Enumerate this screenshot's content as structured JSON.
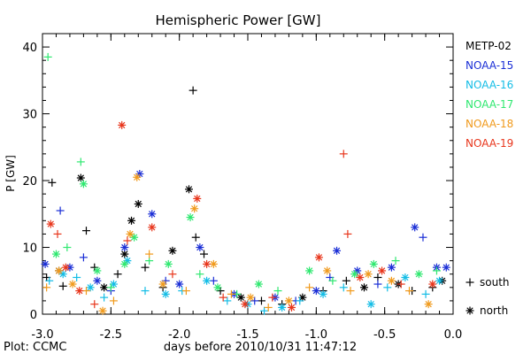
{
  "chart_data": {
    "type": "scatter",
    "title": "Hemispheric Power [GW]",
    "xlabel": "days before 2010/10/31 11:47:12",
    "ylabel": "P [GW]",
    "xlim": [
      -3.0,
      0.0
    ],
    "ylim": [
      0,
      42
    ],
    "xticks": [
      -3.0,
      -2.5,
      -2.0,
      -1.5,
      -1.0,
      -0.5,
      0.0
    ],
    "xtick_labels": [
      "-3.0",
      "-2.5",
      "-2.0",
      "-1.5",
      "-1.0",
      "-0.5",
      "0.0"
    ],
    "yticks": [
      0,
      10,
      20,
      30,
      40
    ],
    "ytick_labels": [
      "0",
      "10",
      "20",
      "30",
      "40"
    ],
    "grid": false,
    "legend_position": "right",
    "footer": "Plot: CCMC",
    "marker_legend": [
      {
        "symbol": "+",
        "label": "south"
      },
      {
        "symbol": "*",
        "label": "north"
      }
    ],
    "series": [
      {
        "name": "METP-02",
        "color": "#000000",
        "points": [
          {
            "x": -2.97,
            "y": 5.5,
            "m": "+"
          },
          {
            "x": -2.93,
            "y": 19.7,
            "m": "+"
          },
          {
            "x": -2.88,
            "y": 6.5,
            "m": "*"
          },
          {
            "x": -2.85,
            "y": 4.2,
            "m": "+"
          },
          {
            "x": -2.72,
            "y": 20.4,
            "m": "*"
          },
          {
            "x": -2.68,
            "y": 12.5,
            "m": "+"
          },
          {
            "x": -2.62,
            "y": 7.0,
            "m": "+"
          },
          {
            "x": -2.55,
            "y": 4.0,
            "m": "*"
          },
          {
            "x": -2.45,
            "y": 6.0,
            "m": "+"
          },
          {
            "x": -2.4,
            "y": 9.0,
            "m": "*"
          },
          {
            "x": -2.35,
            "y": 14.0,
            "m": "*"
          },
          {
            "x": -2.3,
            "y": 16.5,
            "m": "*"
          },
          {
            "x": -2.25,
            "y": 7.0,
            "m": "+"
          },
          {
            "x": -2.12,
            "y": 4.0,
            "m": "+"
          },
          {
            "x": -2.05,
            "y": 9.5,
            "m": "*"
          },
          {
            "x": -1.9,
            "y": 33.5,
            "m": "+"
          },
          {
            "x": -1.93,
            "y": 18.7,
            "m": "*"
          },
          {
            "x": -1.88,
            "y": 11.5,
            "m": "+"
          },
          {
            "x": -1.82,
            "y": 9.0,
            "m": "+"
          },
          {
            "x": -1.7,
            "y": 3.5,
            "m": "+"
          },
          {
            "x": -1.55,
            "y": 2.5,
            "m": "*"
          },
          {
            "x": -1.4,
            "y": 2.0,
            "m": "+"
          },
          {
            "x": -1.25,
            "y": 1.5,
            "m": "+"
          },
          {
            "x": -1.1,
            "y": 2.5,
            "m": "*"
          },
          {
            "x": -0.95,
            "y": 3.5,
            "m": "+"
          },
          {
            "x": -0.78,
            "y": 5.0,
            "m": "+"
          },
          {
            "x": -0.65,
            "y": 4.0,
            "m": "*"
          },
          {
            "x": -0.55,
            "y": 5.5,
            "m": "+"
          },
          {
            "x": -0.4,
            "y": 4.5,
            "m": "*"
          },
          {
            "x": -0.3,
            "y": 3.5,
            "m": "+"
          },
          {
            "x": -0.15,
            "y": 4.0,
            "m": "+"
          },
          {
            "x": -0.08,
            "y": 5.0,
            "m": "*"
          }
        ]
      },
      {
        "name": "NOAA-15",
        "color": "#1a2ed6",
        "points": [
          {
            "x": -2.98,
            "y": 7.5,
            "m": "*"
          },
          {
            "x": -2.87,
            "y": 15.5,
            "m": "+"
          },
          {
            "x": -2.8,
            "y": 7.0,
            "m": "*"
          },
          {
            "x": -2.7,
            "y": 8.5,
            "m": "+"
          },
          {
            "x": -2.6,
            "y": 5.0,
            "m": "*"
          },
          {
            "x": -2.5,
            "y": 3.5,
            "m": "+"
          },
          {
            "x": -2.4,
            "y": 10.0,
            "m": "*"
          },
          {
            "x": -2.29,
            "y": 21.0,
            "m": "*"
          },
          {
            "x": -2.2,
            "y": 15.0,
            "m": "*"
          },
          {
            "x": -2.1,
            "y": 5.0,
            "m": "+"
          },
          {
            "x": -2.0,
            "y": 4.5,
            "m": "*"
          },
          {
            "x": -1.85,
            "y": 10.0,
            "m": "*"
          },
          {
            "x": -1.75,
            "y": 5.0,
            "m": "+"
          },
          {
            "x": -1.6,
            "y": 3.0,
            "m": "*"
          },
          {
            "x": -1.45,
            "y": 2.0,
            "m": "+"
          },
          {
            "x": -1.3,
            "y": 2.5,
            "m": "*"
          },
          {
            "x": -1.15,
            "y": 2.0,
            "m": "+"
          },
          {
            "x": -1.0,
            "y": 3.5,
            "m": "*"
          },
          {
            "x": -0.9,
            "y": 5.5,
            "m": "+"
          },
          {
            "x": -0.85,
            "y": 9.5,
            "m": "*"
          },
          {
            "x": -0.7,
            "y": 6.5,
            "m": "*"
          },
          {
            "x": -0.55,
            "y": 4.5,
            "m": "+"
          },
          {
            "x": -0.45,
            "y": 7.0,
            "m": "*"
          },
          {
            "x": -0.28,
            "y": 13.0,
            "m": "*"
          },
          {
            "x": -0.22,
            "y": 11.5,
            "m": "+"
          },
          {
            "x": -0.12,
            "y": 7.0,
            "m": "*"
          },
          {
            "x": -0.05,
            "y": 7.0,
            "m": "*"
          }
        ]
      },
      {
        "name": "NOAA-16",
        "color": "#14bde6",
        "points": [
          {
            "x": -2.95,
            "y": 5.0,
            "m": "+"
          },
          {
            "x": -2.85,
            "y": 6.0,
            "m": "*"
          },
          {
            "x": -2.75,
            "y": 5.5,
            "m": "+"
          },
          {
            "x": -2.65,
            "y": 4.0,
            "m": "*"
          },
          {
            "x": -2.55,
            "y": 2.5,
            "m": "+"
          },
          {
            "x": -2.48,
            "y": 4.5,
            "m": "*"
          },
          {
            "x": -2.38,
            "y": 8.0,
            "m": "*"
          },
          {
            "x": -2.25,
            "y": 3.5,
            "m": "+"
          },
          {
            "x": -2.1,
            "y": 3.0,
            "m": "*"
          },
          {
            "x": -1.98,
            "y": 3.5,
            "m": "+"
          },
          {
            "x": -1.8,
            "y": 5.0,
            "m": "*"
          },
          {
            "x": -1.65,
            "y": 2.0,
            "m": "+"
          },
          {
            "x": -1.5,
            "y": 1.5,
            "m": "*"
          },
          {
            "x": -1.38,
            "y": 0.5,
            "m": "+"
          },
          {
            "x": -1.25,
            "y": 1.0,
            "m": "*"
          },
          {
            "x": -1.12,
            "y": 2.0,
            "m": "+"
          },
          {
            "x": -0.95,
            "y": 3.0,
            "m": "*"
          },
          {
            "x": -0.8,
            "y": 4.0,
            "m": "+"
          },
          {
            "x": -0.6,
            "y": 1.5,
            "m": "*"
          },
          {
            "x": -0.48,
            "y": 4.0,
            "m": "+"
          },
          {
            "x": -0.35,
            "y": 5.5,
            "m": "*"
          },
          {
            "x": -0.2,
            "y": 3.0,
            "m": "+"
          },
          {
            "x": -0.1,
            "y": 5.0,
            "m": "*"
          }
        ]
      },
      {
        "name": "NOAA-17",
        "color": "#2fe870",
        "points": [
          {
            "x": -2.96,
            "y": 38.5,
            "m": "+"
          },
          {
            "x": -2.9,
            "y": 9.0,
            "m": "*"
          },
          {
            "x": -2.82,
            "y": 10.0,
            "m": "+"
          },
          {
            "x": -2.72,
            "y": 22.8,
            "m": "+"
          },
          {
            "x": -2.7,
            "y": 19.5,
            "m": "*"
          },
          {
            "x": -2.6,
            "y": 6.5,
            "m": "*"
          },
          {
            "x": -2.5,
            "y": 4.0,
            "m": "+"
          },
          {
            "x": -2.4,
            "y": 7.5,
            "m": "*"
          },
          {
            "x": -2.33,
            "y": 11.5,
            "m": "*"
          },
          {
            "x": -2.22,
            "y": 8.0,
            "m": "+"
          },
          {
            "x": -2.08,
            "y": 7.5,
            "m": "*"
          },
          {
            "x": -1.92,
            "y": 14.5,
            "m": "*"
          },
          {
            "x": -1.85,
            "y": 6.0,
            "m": "+"
          },
          {
            "x": -1.72,
            "y": 4.0,
            "m": "*"
          },
          {
            "x": -1.58,
            "y": 3.0,
            "m": "+"
          },
          {
            "x": -1.42,
            "y": 4.5,
            "m": "*"
          },
          {
            "x": -1.28,
            "y": 3.5,
            "m": "+"
          },
          {
            "x": -1.05,
            "y": 6.5,
            "m": "*"
          },
          {
            "x": -0.88,
            "y": 5.0,
            "m": "+"
          },
          {
            "x": -0.72,
            "y": 6.0,
            "m": "*"
          },
          {
            "x": -0.58,
            "y": 7.5,
            "m": "*"
          },
          {
            "x": -0.42,
            "y": 8.0,
            "m": "+"
          },
          {
            "x": -0.25,
            "y": 6.0,
            "m": "*"
          },
          {
            "x": -0.12,
            "y": 6.5,
            "m": "+"
          }
        ]
      },
      {
        "name": "NOAA-18",
        "color": "#f09a1c",
        "points": [
          {
            "x": -2.97,
            "y": 4.0,
            "m": "+"
          },
          {
            "x": -2.88,
            "y": 6.5,
            "m": "*"
          },
          {
            "x": -2.78,
            "y": 4.5,
            "m": "*"
          },
          {
            "x": -2.68,
            "y": 3.5,
            "m": "+"
          },
          {
            "x": -2.56,
            "y": 0.5,
            "m": "*"
          },
          {
            "x": -2.48,
            "y": 2.0,
            "m": "+"
          },
          {
            "x": -2.36,
            "y": 12.0,
            "m": "*"
          },
          {
            "x": -2.31,
            "y": 20.5,
            "m": "*"
          },
          {
            "x": -2.22,
            "y": 9.0,
            "m": "+"
          },
          {
            "x": -2.12,
            "y": 4.5,
            "m": "*"
          },
          {
            "x": -1.95,
            "y": 3.5,
            "m": "+"
          },
          {
            "x": -1.89,
            "y": 15.8,
            "m": "*"
          },
          {
            "x": -1.75,
            "y": 7.5,
            "m": "*"
          },
          {
            "x": -1.62,
            "y": 3.0,
            "m": "+"
          },
          {
            "x": -1.48,
            "y": 2.5,
            "m": "*"
          },
          {
            "x": -1.35,
            "y": 1.0,
            "m": "+"
          },
          {
            "x": -1.2,
            "y": 2.0,
            "m": "*"
          },
          {
            "x": -1.05,
            "y": 4.0,
            "m": "+"
          },
          {
            "x": -0.92,
            "y": 6.5,
            "m": "*"
          },
          {
            "x": -0.75,
            "y": 3.5,
            "m": "+"
          },
          {
            "x": -0.62,
            "y": 6.0,
            "m": "*"
          },
          {
            "x": -0.45,
            "y": 5.0,
            "m": "*"
          },
          {
            "x": -0.32,
            "y": 3.5,
            "m": "+"
          },
          {
            "x": -0.18,
            "y": 1.5,
            "m": "*"
          }
        ]
      },
      {
        "name": "NOAA-19",
        "color": "#e8361c",
        "points": [
          {
            "x": -2.94,
            "y": 13.5,
            "m": "*"
          },
          {
            "x": -2.89,
            "y": 12.0,
            "m": "+"
          },
          {
            "x": -2.83,
            "y": 7.0,
            "m": "*"
          },
          {
            "x": -2.73,
            "y": 3.5,
            "m": "*"
          },
          {
            "x": -2.62,
            "y": 1.5,
            "m": "+"
          },
          {
            "x": -2.42,
            "y": 28.3,
            "m": "*"
          },
          {
            "x": -2.38,
            "y": 11.0,
            "m": "+"
          },
          {
            "x": -2.2,
            "y": 13.0,
            "m": "*"
          },
          {
            "x": -2.05,
            "y": 6.0,
            "m": "+"
          },
          {
            "x": -1.87,
            "y": 17.3,
            "m": "*"
          },
          {
            "x": -1.8,
            "y": 7.5,
            "m": "*"
          },
          {
            "x": -1.68,
            "y": 2.5,
            "m": "+"
          },
          {
            "x": -1.52,
            "y": 1.5,
            "m": "*"
          },
          {
            "x": -1.32,
            "y": 2.5,
            "m": "+"
          },
          {
            "x": -1.18,
            "y": 1.0,
            "m": "*"
          },
          {
            "x": -0.98,
            "y": 8.5,
            "m": "*"
          },
          {
            "x": -0.8,
            "y": 24.0,
            "m": "+"
          },
          {
            "x": -0.77,
            "y": 12.0,
            "m": "+"
          },
          {
            "x": -0.68,
            "y": 5.5,
            "m": "*"
          },
          {
            "x": -0.52,
            "y": 6.5,
            "m": "*"
          },
          {
            "x": -0.38,
            "y": 4.5,
            "m": "+"
          },
          {
            "x": -0.15,
            "y": 4.5,
            "m": "*"
          }
        ]
      }
    ]
  }
}
